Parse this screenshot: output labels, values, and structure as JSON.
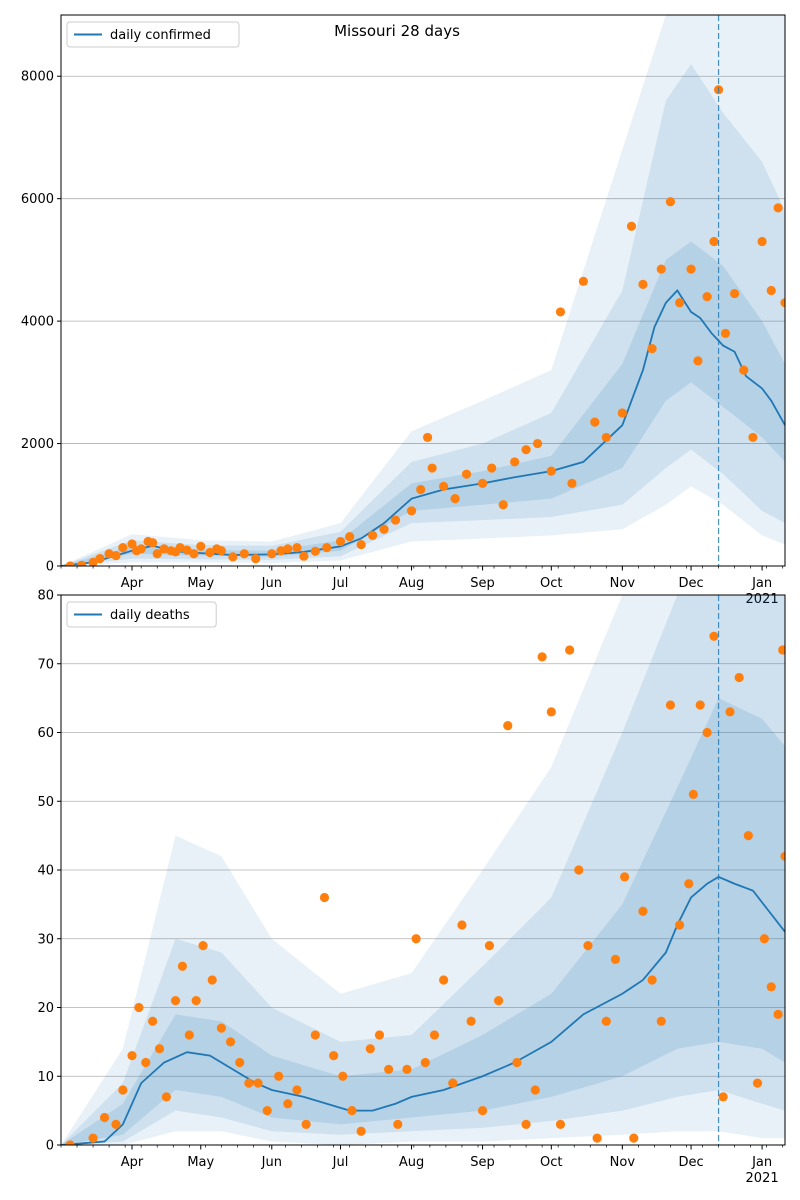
{
  "colors": {
    "line": "#1f77b4",
    "points": "#ff7f0e",
    "band": "#1f77b4",
    "grid": "#b0b0b0",
    "axes": "#000000"
  },
  "chart_data": [
    {
      "type": "line",
      "title": "Missouri 28 days",
      "xlabel": "",
      "ylabel": "",
      "legend": {
        "label": "daily confirmed",
        "placement": "top-left"
      },
      "ylim": [
        0,
        9000
      ],
      "yticks": [
        0,
        2000,
        4000,
        6000,
        8000
      ],
      "xlim": [
        "2020-03-01",
        "2021-01-11"
      ],
      "xtick_labels": [
        "Apr",
        "May",
        "Jun",
        "Jul",
        "Aug",
        "Sep",
        "Oct",
        "Nov",
        "Dec",
        "Jan"
      ],
      "xtick_dates": [
        "2020-04-01",
        "2020-05-01",
        "2020-06-01",
        "2020-07-01",
        "2020-08-01",
        "2020-09-01",
        "2020-10-01",
        "2020-11-01",
        "2020-12-01",
        "2021-01-01"
      ],
      "year_label": "2021",
      "grid": "horizontal",
      "vline_date": "2020-12-13",
      "series_line": {
        "name": "daily confirmed",
        "x": [
          "2020-03-01",
          "2020-03-15",
          "2020-04-01",
          "2020-04-10",
          "2020-04-20",
          "2020-05-01",
          "2020-05-15",
          "2020-06-01",
          "2020-06-15",
          "2020-07-01",
          "2020-07-10",
          "2020-07-20",
          "2020-08-01",
          "2020-08-15",
          "2020-09-01",
          "2020-09-15",
          "2020-10-01",
          "2020-10-15",
          "2020-11-01",
          "2020-11-10",
          "2020-11-15",
          "2020-11-20",
          "2020-11-25",
          "2020-12-01",
          "2020-12-05",
          "2020-12-10",
          "2020-12-15",
          "2020-12-20",
          "2020-12-25",
          "2021-01-01",
          "2021-01-05",
          "2021-01-11"
        ],
        "y": [
          0,
          60,
          250,
          330,
          240,
          210,
          180,
          190,
          230,
          320,
          450,
          700,
          1100,
          1250,
          1350,
          1450,
          1550,
          1700,
          2300,
          3200,
          3900,
          4300,
          4500,
          4150,
          4050,
          3800,
          3600,
          3500,
          3100,
          2900,
          2700,
          2300
        ]
      },
      "bands": [
        {
          "level": "inner",
          "x": [
            "2020-03-01",
            "2020-04-01",
            "2020-05-01",
            "2020-06-01",
            "2020-07-01",
            "2020-08-01",
            "2020-09-01",
            "2020-10-01",
            "2020-11-01",
            "2020-11-20",
            "2020-12-01",
            "2020-12-15",
            "2021-01-01",
            "2021-01-11"
          ],
          "lower": [
            0,
            200,
            170,
            150,
            250,
            900,
            1000,
            1100,
            1600,
            2700,
            3000,
            2600,
            2100,
            1700
          ],
          "upper": [
            0,
            320,
            260,
            250,
            420,
            1350,
            1550,
            1800,
            3300,
            5000,
            5300,
            4900,
            4000,
            3300
          ]
        },
        {
          "level": "middle",
          "x": [
            "2020-03-01",
            "2020-04-01",
            "2020-05-01",
            "2020-06-01",
            "2020-07-01",
            "2020-08-01",
            "2020-09-01",
            "2020-10-01",
            "2020-11-01",
            "2020-11-20",
            "2020-12-01",
            "2020-12-15",
            "2021-01-01",
            "2021-01-11"
          ],
          "lower": [
            0,
            120,
            110,
            100,
            160,
            700,
            750,
            800,
            1000,
            1600,
            1900,
            1500,
            900,
            700
          ],
          "upper": [
            0,
            420,
            340,
            330,
            560,
            1700,
            2000,
            2500,
            4500,
            7600,
            8200,
            7400,
            6600,
            5800
          ]
        },
        {
          "level": "outer",
          "x": [
            "2020-03-01",
            "2020-04-01",
            "2020-05-01",
            "2020-06-01",
            "2020-07-01",
            "2020-08-01",
            "2020-09-01",
            "2020-10-01",
            "2020-11-01",
            "2020-11-20",
            "2020-12-01",
            "2020-12-15",
            "2021-01-01",
            "2021-01-11"
          ],
          "lower": [
            0,
            60,
            60,
            50,
            90,
            400,
            450,
            500,
            600,
            1000,
            1300,
            1000,
            500,
            350
          ],
          "upper": [
            0,
            520,
            420,
            400,
            700,
            2200,
            2700,
            3200,
            6800,
            9000,
            9000,
            9000,
            9000,
            9000
          ]
        }
      ],
      "points": {
        "x": [
          "2020-03-05",
          "2020-03-10",
          "2020-03-15",
          "2020-03-18",
          "2020-03-22",
          "2020-03-25",
          "2020-03-28",
          "2020-04-01",
          "2020-04-03",
          "2020-04-05",
          "2020-04-08",
          "2020-04-10",
          "2020-04-12",
          "2020-04-15",
          "2020-04-18",
          "2020-04-20",
          "2020-04-22",
          "2020-04-25",
          "2020-04-28",
          "2020-05-01",
          "2020-05-05",
          "2020-05-08",
          "2020-05-10",
          "2020-05-15",
          "2020-05-20",
          "2020-05-25",
          "2020-06-01",
          "2020-06-05",
          "2020-06-08",
          "2020-06-12",
          "2020-06-15",
          "2020-06-20",
          "2020-06-25",
          "2020-07-01",
          "2020-07-05",
          "2020-07-10",
          "2020-07-15",
          "2020-07-20",
          "2020-07-25",
          "2020-08-01",
          "2020-08-05",
          "2020-08-08",
          "2020-08-10",
          "2020-08-15",
          "2020-08-20",
          "2020-08-25",
          "2020-09-01",
          "2020-09-05",
          "2020-09-10",
          "2020-09-15",
          "2020-09-20",
          "2020-09-25",
          "2020-10-01",
          "2020-10-05",
          "2020-10-10",
          "2020-10-15",
          "2020-10-20",
          "2020-10-25",
          "2020-11-01",
          "2020-11-05",
          "2020-11-10",
          "2020-11-14",
          "2020-11-18",
          "2020-11-22",
          "2020-11-26",
          "2020-12-01",
          "2020-12-04",
          "2020-12-08",
          "2020-12-11",
          "2020-12-13",
          "2020-12-16",
          "2020-12-20",
          "2020-12-24",
          "2020-12-28",
          "2021-01-01",
          "2021-01-05",
          "2021-01-08",
          "2021-01-11"
        ],
        "y": [
          0,
          10,
          60,
          120,
          200,
          170,
          300,
          360,
          250,
          280,
          400,
          380,
          200,
          280,
          250,
          230,
          300,
          260,
          200,
          320,
          220,
          280,
          250,
          150,
          200,
          120,
          200,
          250,
          280,
          300,
          160,
          240,
          300,
          400,
          480,
          350,
          500,
          600,
          750,
          900,
          1250,
          2100,
          1600,
          1300,
          1100,
          1500,
          1350,
          1600,
          1000,
          1700,
          1900,
          2000,
          1550,
          4150,
          1350,
          4650,
          2350,
          2100,
          2500,
          5550,
          4600,
          3550,
          4850,
          5950,
          4300,
          4850,
          3350,
          4400,
          5300,
          7780,
          3800,
          4450,
          3200,
          2100,
          5300,
          4500,
          5850,
          4300
        ]
      }
    },
    {
      "type": "line",
      "title": "",
      "xlabel": "",
      "ylabel": "",
      "legend": {
        "label": "daily deaths",
        "placement": "top-left"
      },
      "ylim": [
        0,
        80
      ],
      "yticks": [
        0,
        10,
        20,
        30,
        40,
        50,
        60,
        70,
        80
      ],
      "xlim": [
        "2020-03-01",
        "2021-01-11"
      ],
      "xtick_labels": [
        "Apr",
        "May",
        "Jun",
        "Jul",
        "Aug",
        "Sep",
        "Oct",
        "Nov",
        "Dec",
        "Jan"
      ],
      "xtick_dates": [
        "2020-04-01",
        "2020-05-01",
        "2020-06-01",
        "2020-07-01",
        "2020-08-01",
        "2020-09-01",
        "2020-10-01",
        "2020-11-01",
        "2020-12-01",
        "2021-01-01"
      ],
      "year_label": "2021",
      "grid": "horizontal",
      "vline_date": "2020-12-13",
      "series_line": {
        "name": "daily deaths",
        "x": [
          "2020-03-01",
          "2020-03-20",
          "2020-03-28",
          "2020-04-05",
          "2020-04-15",
          "2020-04-25",
          "2020-05-05",
          "2020-05-15",
          "2020-05-25",
          "2020-06-01",
          "2020-06-15",
          "2020-06-25",
          "2020-07-05",
          "2020-07-15",
          "2020-07-25",
          "2020-08-01",
          "2020-08-15",
          "2020-09-01",
          "2020-09-15",
          "2020-10-01",
          "2020-10-15",
          "2020-11-01",
          "2020-11-10",
          "2020-11-20",
          "2020-11-25",
          "2020-12-01",
          "2020-12-08",
          "2020-12-13",
          "2020-12-20",
          "2020-12-28",
          "2021-01-04",
          "2021-01-11"
        ],
        "y": [
          0,
          0.5,
          3,
          9,
          12,
          13.5,
          13,
          11,
          9,
          8,
          7,
          6,
          5,
          5,
          6,
          7,
          8,
          10,
          12,
          15,
          19,
          22,
          24,
          28,
          32,
          36,
          38,
          39,
          38,
          37,
          34,
          31
        ]
      },
      "bands": [
        {
          "level": "inner",
          "x": [
            "2020-03-01",
            "2020-03-28",
            "2020-04-20",
            "2020-05-10",
            "2020-06-01",
            "2020-07-01",
            "2020-08-01",
            "2020-09-01",
            "2020-10-01",
            "2020-11-01",
            "2020-11-25",
            "2020-12-13",
            "2021-01-01",
            "2021-01-11"
          ],
          "lower": [
            0,
            1.5,
            8,
            7,
            4,
            3,
            4,
            5,
            7,
            10,
            14,
            15,
            14,
            12
          ],
          "upper": [
            0,
            6,
            19,
            18,
            13,
            10,
            11,
            16,
            22,
            35,
            52,
            65,
            62,
            58
          ]
        },
        {
          "level": "middle",
          "x": [
            "2020-03-01",
            "2020-03-28",
            "2020-04-20",
            "2020-05-10",
            "2020-06-01",
            "2020-07-01",
            "2020-08-01",
            "2020-09-01",
            "2020-10-01",
            "2020-11-01",
            "2020-11-25",
            "2020-12-13",
            "2021-01-01",
            "2021-01-11"
          ],
          "lower": [
            0,
            0.5,
            5,
            4,
            2,
            1.5,
            2,
            2.5,
            3.5,
            5,
            7,
            8,
            6,
            5
          ],
          "upper": [
            0,
            9,
            30,
            28,
            20,
            15,
            16,
            26,
            36,
            60,
            80,
            80,
            80,
            80
          ]
        },
        {
          "level": "outer",
          "x": [
            "2020-03-01",
            "2020-03-28",
            "2020-04-20",
            "2020-05-10",
            "2020-06-01",
            "2020-07-01",
            "2020-08-01",
            "2020-09-01",
            "2020-10-01",
            "2020-11-01",
            "2020-11-25",
            "2020-12-13",
            "2021-01-01",
            "2021-01-11"
          ],
          "lower": [
            0,
            0,
            2,
            2,
            0.5,
            0,
            0.5,
            0.5,
            1,
            1.5,
            2,
            2,
            1,
            1
          ],
          "upper": [
            0,
            14,
            45,
            42,
            30,
            22,
            25,
            40,
            55,
            80,
            80,
            80,
            80,
            80
          ]
        }
      ],
      "points": {
        "x": [
          "2020-03-05",
          "2020-03-15",
          "2020-03-20",
          "2020-03-25",
          "2020-03-28",
          "2020-04-01",
          "2020-04-04",
          "2020-04-07",
          "2020-04-10",
          "2020-04-13",
          "2020-04-16",
          "2020-04-20",
          "2020-04-23",
          "2020-04-26",
          "2020-04-29",
          "2020-05-02",
          "2020-05-06",
          "2020-05-10",
          "2020-05-14",
          "2020-05-18",
          "2020-05-22",
          "2020-05-26",
          "2020-05-30",
          "2020-06-04",
          "2020-06-08",
          "2020-06-12",
          "2020-06-16",
          "2020-06-20",
          "2020-06-24",
          "2020-06-28",
          "2020-07-02",
          "2020-07-06",
          "2020-07-10",
          "2020-07-14",
          "2020-07-18",
          "2020-07-22",
          "2020-07-26",
          "2020-07-30",
          "2020-08-03",
          "2020-08-07",
          "2020-08-11",
          "2020-08-15",
          "2020-08-19",
          "2020-08-23",
          "2020-08-27",
          "2020-09-01",
          "2020-09-04",
          "2020-09-08",
          "2020-09-12",
          "2020-09-16",
          "2020-09-20",
          "2020-09-24",
          "2020-09-27",
          "2020-10-01",
          "2020-10-05",
          "2020-10-09",
          "2020-10-13",
          "2020-10-17",
          "2020-10-21",
          "2020-10-25",
          "2020-10-29",
          "2020-11-02",
          "2020-11-06",
          "2020-11-10",
          "2020-11-14",
          "2020-11-18",
          "2020-11-22",
          "2020-11-26",
          "2020-11-30",
          "2020-12-02",
          "2020-12-05",
          "2020-12-08",
          "2020-12-11",
          "2020-12-15",
          "2020-12-18",
          "2020-12-22",
          "2020-12-26",
          "2020-12-30",
          "2021-01-02",
          "2021-01-05",
          "2021-01-08",
          "2021-01-10",
          "2021-01-11"
        ],
        "y": [
          0,
          1,
          4,
          3,
          8,
          13,
          20,
          12,
          18,
          14,
          7,
          21,
          26,
          16,
          21,
          29,
          24,
          17,
          15,
          12,
          9,
          9,
          5,
          10,
          6,
          8,
          3,
          16,
          36,
          13,
          10,
          5,
          2,
          14,
          16,
          11,
          3,
          11,
          30,
          12,
          16,
          24,
          9,
          32,
          18,
          5,
          29,
          21,
          61,
          12,
          3,
          8,
          71,
          63,
          3,
          72,
          40,
          29,
          1,
          18,
          27,
          39,
          1,
          34,
          24,
          18,
          64,
          32,
          38,
          51,
          64,
          60,
          74,
          7,
          63,
          68,
          45,
          9,
          30,
          23,
          19,
          72,
          42
        ]
      }
    }
  ]
}
